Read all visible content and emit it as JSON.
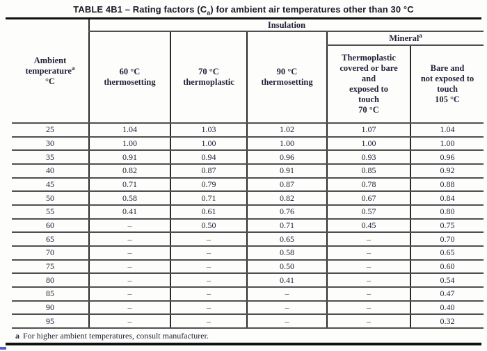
{
  "title": {
    "prefix": "TABLE 4B1 – Rating factors (C",
    "subscript": "a",
    "suffix": ") for ambient air temperatures other than 30 °C"
  },
  "table": {
    "group_headers": {
      "insulation": "Insulation",
      "mineral": "Mineral",
      "mineral_sup": "a"
    },
    "ambient": {
      "line1": "Ambient",
      "line2": "temperature",
      "sup": "a",
      "line3": "°C"
    },
    "col_headers": [
      "60 °C\nthermosetting",
      "70 °C\nthermoplastic",
      "90 °C\nthermosetting",
      "Thermoplastic\ncovered or bare\nand\nexposed to\ntouch\n70 °C",
      "Bare and\nnot exposed to\ntouch\n105 °C"
    ],
    "rows": [
      {
        "temp": "25",
        "values": [
          "1.04",
          "1.03",
          "1.02",
          "1.07",
          "1.04"
        ]
      },
      {
        "temp": "30",
        "values": [
          "1.00",
          "1.00",
          "1.00",
          "1.00",
          "1.00"
        ]
      },
      {
        "temp": "35",
        "values": [
          "0.91",
          "0.94",
          "0.96",
          "0.93",
          "0.96"
        ]
      },
      {
        "temp": "40",
        "values": [
          "0.82",
          "0.87",
          "0.91",
          "0.85",
          "0.92"
        ]
      },
      {
        "temp": "45",
        "values": [
          "0.71",
          "0.79",
          "0.87",
          "0.78",
          "0.88"
        ]
      },
      {
        "temp": "50",
        "values": [
          "0.58",
          "0.71",
          "0.82",
          "0.67",
          "0.84"
        ]
      },
      {
        "temp": "55",
        "values": [
          "0.41",
          "0.61",
          "0.76",
          "0.57",
          "0.80"
        ]
      },
      {
        "temp": "60",
        "values": [
          "–",
          "0.50",
          "0.71",
          "0.45",
          "0.75"
        ]
      },
      {
        "temp": "65",
        "values": [
          "–",
          "–",
          "0.65",
          "–",
          "0.70"
        ]
      },
      {
        "temp": "70",
        "values": [
          "–",
          "–",
          "0.58",
          "–",
          "0.65"
        ]
      },
      {
        "temp": "75",
        "values": [
          "–",
          "–",
          "0.50",
          "–",
          "0.60"
        ]
      },
      {
        "temp": "80",
        "values": [
          "–",
          "–",
          "0.41",
          "–",
          "0.54"
        ]
      },
      {
        "temp": "85",
        "values": [
          "–",
          "–",
          "–",
          "–",
          "0.47"
        ]
      },
      {
        "temp": "90",
        "values": [
          "–",
          "–",
          "–",
          "–",
          "0.40"
        ]
      },
      {
        "temp": "95",
        "values": [
          "–",
          "–",
          "–",
          "–",
          "0.32"
        ]
      }
    ]
  },
  "footnote": {
    "marker": "a",
    "text": "For higher ambient temperatures, consult manufacturer."
  },
  "colors": {
    "background": "#fdfdfc",
    "ink": "#23233a",
    "title_ink": "#1c1c28",
    "thick_rule": "#111111",
    "hline": "#4f4f4f",
    "vline": "#2b2b2b"
  }
}
